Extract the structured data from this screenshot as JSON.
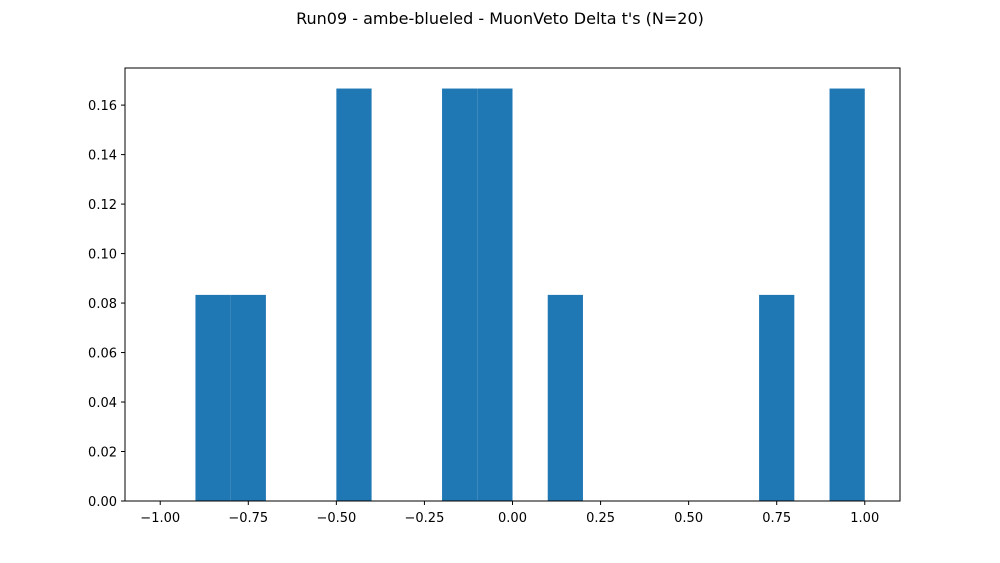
{
  "chart_data": {
    "type": "bar",
    "title": "Run09 - ambe-blueled - MuonVeto Delta t's (N=20)",
    "xlabel": "",
    "ylabel": "",
    "xlim": [
      -1.1,
      1.1
    ],
    "ylim": [
      0,
      0.175
    ],
    "bin_edges": [
      -1.0,
      -0.9,
      -0.8,
      -0.7,
      -0.6,
      -0.5,
      -0.4,
      -0.3,
      -0.2,
      -0.1,
      0.0,
      0.1,
      0.2,
      0.3,
      0.4,
      0.5,
      0.6,
      0.7,
      0.8,
      0.9,
      1.0
    ],
    "values": [
      0.0,
      0.0833,
      0.0833,
      0.0,
      0.0,
      0.1667,
      0.0,
      0.0,
      0.1667,
      0.1667,
      0.0,
      0.0833,
      0.0,
      0.0,
      0.0,
      0.0,
      0.0,
      0.0833,
      0.0,
      0.1667
    ],
    "bar_color": "#1f77b4",
    "x_ticks": [
      -1.0,
      -0.75,
      -0.5,
      -0.25,
      0.0,
      0.25,
      0.5,
      0.75,
      1.0
    ],
    "x_tick_labels": [
      "−1.00",
      "−0.75",
      "−0.50",
      "−0.25",
      "0.00",
      "0.25",
      "0.50",
      "0.75",
      "1.00"
    ],
    "y_ticks": [
      0.0,
      0.02,
      0.04,
      0.06,
      0.08,
      0.1,
      0.12,
      0.14,
      0.16
    ],
    "y_tick_labels": [
      "0.00",
      "0.02",
      "0.04",
      "0.06",
      "0.08",
      "0.10",
      "0.12",
      "0.14",
      "0.16"
    ],
    "grid": false,
    "legend": "none"
  }
}
